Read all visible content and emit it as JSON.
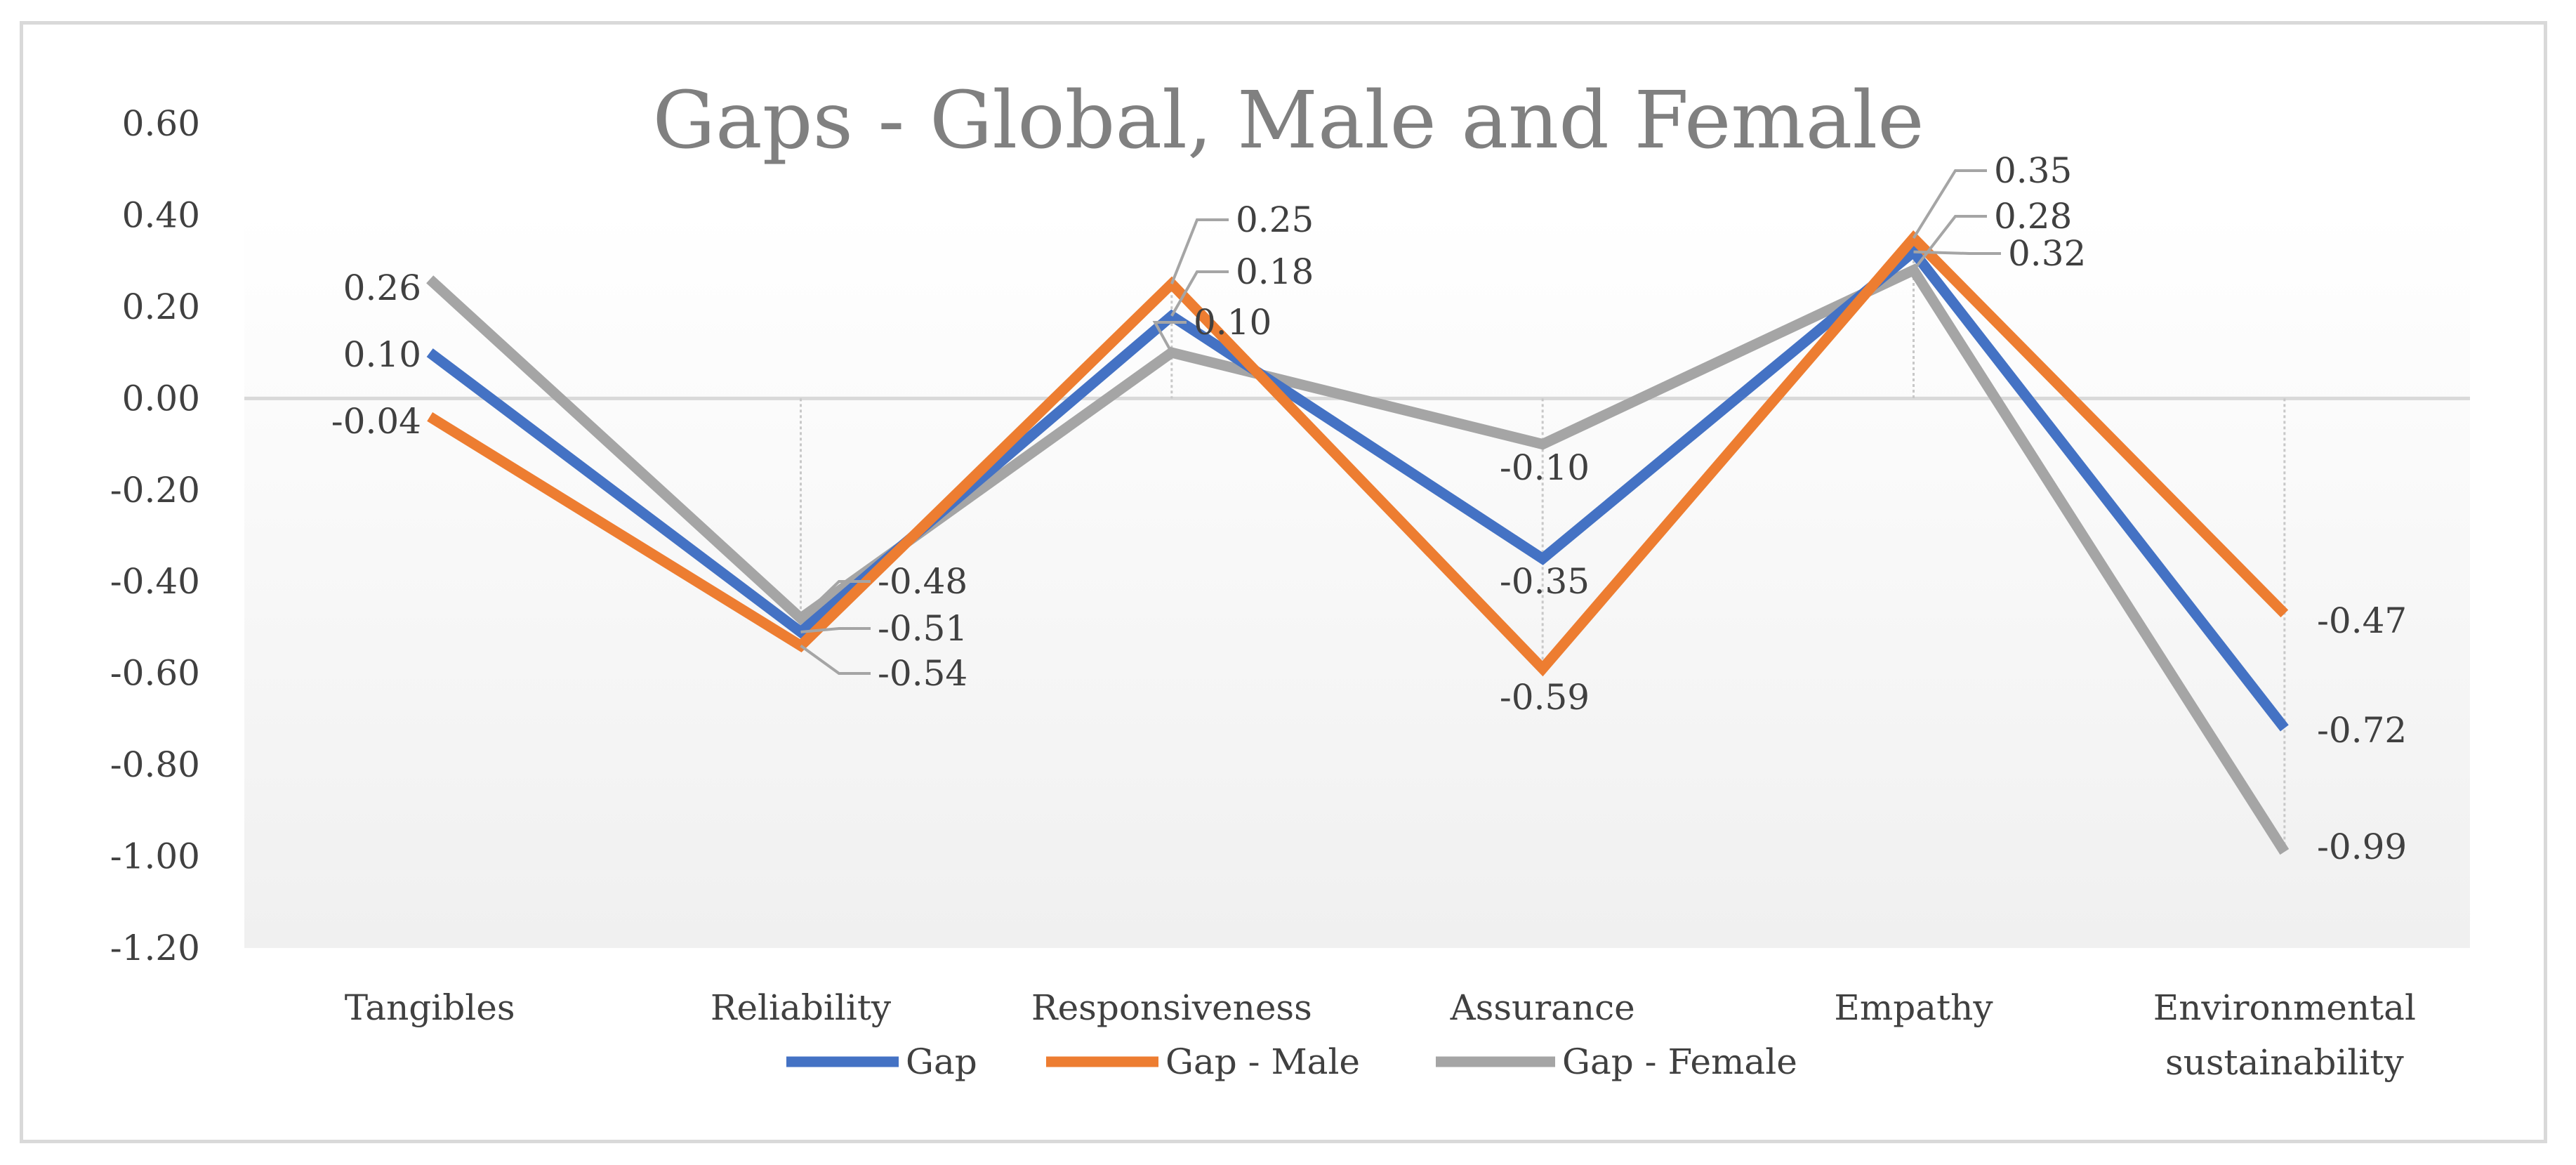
{
  "chart_data": {
    "type": "line",
    "title": "Gaps - Global, Male and Female",
    "xlabel": "",
    "ylabel": "",
    "ylim": [
      -1.2,
      0.6
    ],
    "y_ticks": [
      "0.60",
      "0.40",
      "0.20",
      "0.00",
      "-0.20",
      "-0.40",
      "-0.60",
      "-0.80",
      "-1.00",
      "-1.20"
    ],
    "categories": [
      "Tangibles",
      "Reliability",
      "Responsiveness",
      "Assurance",
      "Empathy",
      "Environmental sustainability"
    ],
    "series": [
      {
        "name": "Gap",
        "color": "#4472c4",
        "values": [
          0.1,
          -0.51,
          0.18,
          -0.35,
          0.32,
          -0.72
        ],
        "labels": [
          "0.10",
          "-0.51",
          "0.18",
          "-0.35",
          "0.32",
          "-0.72"
        ]
      },
      {
        "name": "Gap - Male",
        "color": "#ed7d31",
        "values": [
          -0.04,
          -0.54,
          0.25,
          -0.59,
          0.35,
          -0.47
        ],
        "labels": [
          "-0.04",
          "-0.54",
          "0.25",
          "-0.59",
          "0.35",
          "-0.47"
        ]
      },
      {
        "name": "Gap - Female",
        "color": "#a5a5a5",
        "values": [
          0.26,
          -0.48,
          0.1,
          -0.1,
          0.28,
          -0.99
        ],
        "labels": [
          "0.26",
          "-0.48",
          "0.10",
          "-0.10",
          "0.28",
          "-0.99"
        ]
      }
    ],
    "legend_position": "bottom",
    "colors": {
      "title": "#808080",
      "text": "#404040",
      "border": "#d9d9d9",
      "zero_line": "#d9d9d9",
      "leader": "#a5a5a5"
    }
  }
}
